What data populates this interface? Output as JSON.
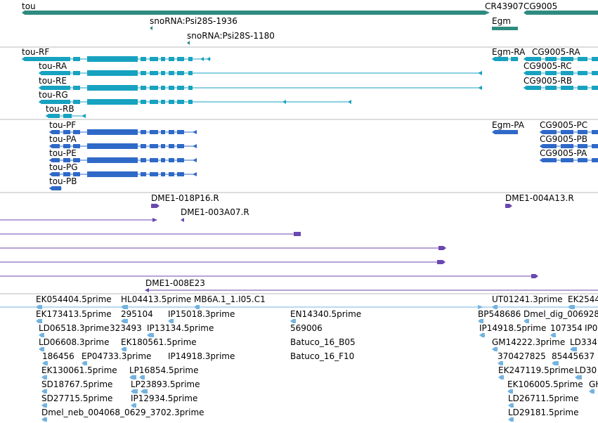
{
  "colors": {
    "gene": "#2e8b80",
    "transcript": "#17a2c0",
    "protein": "#2f69c8",
    "clone": "#6a47b0",
    "est": "#74b3e0",
    "divider": "#b8b8b8"
  },
  "tracks": {
    "gene_labels": [
      {
        "id": "tou",
        "text": "tou"
      },
      {
        "id": "cr43907",
        "text": "CR43907"
      },
      {
        "id": "cg9005",
        "text": "CG9005"
      },
      {
        "id": "egm",
        "text": "Egm"
      },
      {
        "id": "psi1936",
        "text": "snoRNA:Psi28S-1936"
      },
      {
        "id": "psi1180",
        "text": "snoRNA:Psi28S-1180"
      }
    ],
    "transcript_labels": [
      {
        "id": "tou-rf",
        "text": "tou-RF"
      },
      {
        "id": "tou-ra",
        "text": "tou-RA"
      },
      {
        "id": "tou-re",
        "text": "tou-RE"
      },
      {
        "id": "tou-rg",
        "text": "tou-RG"
      },
      {
        "id": "tou-rb",
        "text": "tou-RB"
      },
      {
        "id": "egm-ra",
        "text": "Egm-RA"
      },
      {
        "id": "cg9005-ra",
        "text": "CG9005-RA"
      },
      {
        "id": "cg9005-rc",
        "text": "CG9005-RC"
      },
      {
        "id": "cg9005-rb",
        "text": "CG9005-RB"
      }
    ],
    "protein_labels": [
      {
        "id": "tou-pf",
        "text": "tou-PF"
      },
      {
        "id": "tou-pa",
        "text": "tou-PA"
      },
      {
        "id": "tou-pe",
        "text": "tou-PE"
      },
      {
        "id": "tou-pg",
        "text": "tou-PG"
      },
      {
        "id": "tou-pb",
        "text": "tou-PB"
      },
      {
        "id": "egm-pa",
        "text": "Egm-PA"
      },
      {
        "id": "cg9005-pc",
        "text": "CG9005-PC"
      },
      {
        "id": "cg9005-pb",
        "text": "CG9005-PB"
      },
      {
        "id": "cg9005-pa",
        "text": "CG9005-PA"
      }
    ],
    "clone_labels": [
      {
        "id": "dme1-018p16",
        "text": "DME1-018P16.R"
      },
      {
        "id": "dme1-004a13",
        "text": "DME1-004A13.R"
      },
      {
        "id": "dme1-003a07",
        "text": "DME1-003A07.R"
      },
      {
        "id": "dme1-008e23",
        "text": "DME1-008E23"
      }
    ],
    "est_labels": [
      {
        "id": "ek054404",
        "text": "EK054404.5prime"
      },
      {
        "id": "hl04413",
        "text": "HL04413.5prime"
      },
      {
        "id": "mb6a",
        "text": "MB6A.1_1.I05.C1"
      },
      {
        "id": "ut01241",
        "text": "UT01241.3prime"
      },
      {
        "id": "ek2544",
        "text": "EK2544"
      },
      {
        "id": "ek173413",
        "text": "EK173413.5prime"
      },
      {
        "id": "n295104",
        "text": "295104"
      },
      {
        "id": "ip15018",
        "text": "IP15018.3prime"
      },
      {
        "id": "en14340",
        "text": "EN14340.5prime"
      },
      {
        "id": "bp548686",
        "text": "BP548686"
      },
      {
        "id": "dmel-dig",
        "text": "Dmel_dig_006928"
      },
      {
        "id": "ld06518",
        "text": "LD06518.3prime"
      },
      {
        "id": "n323493",
        "text": "323493"
      },
      {
        "id": "ip13134",
        "text": "IP13134.5prime"
      },
      {
        "id": "n569006",
        "text": "569006"
      },
      {
        "id": "ip14918a",
        "text": "IP14918.5prime"
      },
      {
        "id": "n107354",
        "text": "107354"
      },
      {
        "id": "ip0",
        "text": "IP0"
      },
      {
        "id": "ld06608",
        "text": "LD06608.3prime"
      },
      {
        "id": "ek180561",
        "text": "EK180561.5prime"
      },
      {
        "id": "batuco-b05",
        "text": "Batuco_16_B05"
      },
      {
        "id": "gm14222",
        "text": "GM14222.3prime"
      },
      {
        "id": "ld334",
        "text": "LD334"
      },
      {
        "id": "n186456",
        "text": "186456"
      },
      {
        "id": "ep04733",
        "text": "EP04733.3prime"
      },
      {
        "id": "ip14918b",
        "text": "IP14918.3prime"
      },
      {
        "id": "batuco-f10",
        "text": "Batuco_16_F10"
      },
      {
        "id": "n37042782",
        "text": "370427825"
      },
      {
        "id": "n85445637",
        "text": "85445637"
      },
      {
        "id": "ek130061",
        "text": "EK130061.5prime"
      },
      {
        "id": "lp16854",
        "text": "LP16854.5prime"
      },
      {
        "id": "ek247119",
        "text": "EK247119.5prime"
      },
      {
        "id": "ld30",
        "text": "LD30"
      },
      {
        "id": "sd18767",
        "text": "SD18767.5prime"
      },
      {
        "id": "lp23893",
        "text": "LP23893.5prime"
      },
      {
        "id": "ek106005",
        "text": "EK106005.5prime"
      },
      {
        "id": "gh",
        "text": "GH"
      },
      {
        "id": "sd27715",
        "text": "SD27715.5prime"
      },
      {
        "id": "ip12934",
        "text": "IP12934.5prime"
      },
      {
        "id": "ld26711",
        "text": "LD26711.5prime"
      },
      {
        "id": "dmel-neb",
        "text": "Dmel_neb_004068_0629_3702.3prime"
      },
      {
        "id": "ld29181",
        "text": "LD29181.5prime"
      }
    ]
  }
}
